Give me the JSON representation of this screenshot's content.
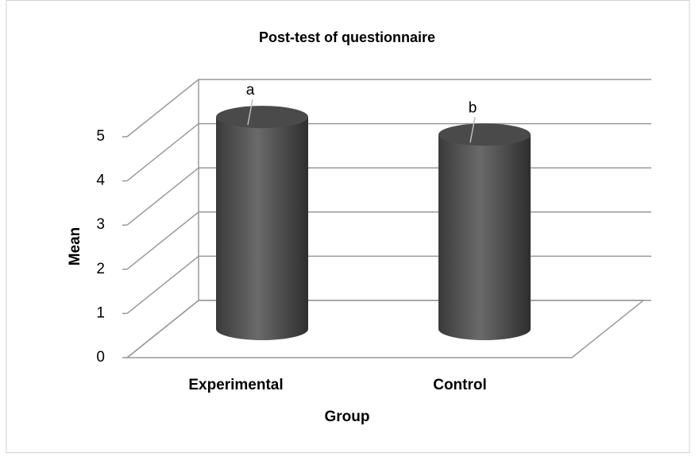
{
  "chart_data": {
    "type": "bar3d",
    "title": "Post-test of questionnaire",
    "x_label": "Group",
    "y_label": "Mean",
    "categories": [
      "Experimental",
      "Control"
    ],
    "values": [
      4.8,
      4.4
    ],
    "color": "#555555",
    "annotations": [
      "a",
      "b"
    ],
    "ylim": [
      0,
      5
    ],
    "yticks": [
      0,
      1,
      2,
      3,
      4,
      5
    ],
    "grid": true
  }
}
